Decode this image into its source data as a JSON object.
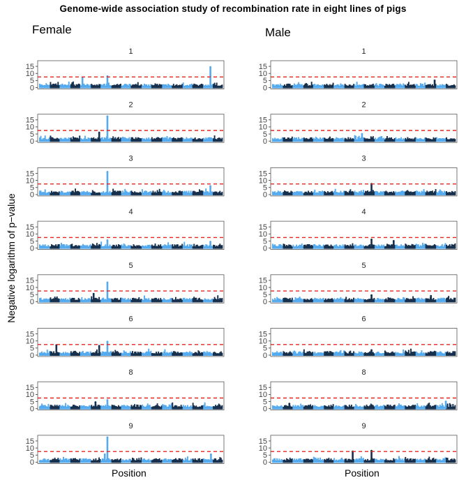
{
  "chart_data": {
    "type": "scatter",
    "title": "Genome-wide association study of recombination rate in eight lines of pigs",
    "ylabel": "Negative logarithm of p−value",
    "xlabel": "Position",
    "ylim": [
      0,
      18
    ],
    "yticks": [
      0,
      5,
      10,
      15
    ],
    "threshold": 7.5,
    "threshold_color": "#e8231e",
    "colors": {
      "dark": "#16304d",
      "light": "#56aaee"
    },
    "n_chromosomes": 18,
    "columns": [
      {
        "name": "Female",
        "panels": [
          {
            "line": "1",
            "peaks": [
              {
                "pos": 0.374,
                "p": 8.0
              },
              {
                "pos": 0.927,
                "p": 14.5
              },
              {
                "pos": 0.24,
                "p": 7.0
              }
            ]
          },
          {
            "line": "2",
            "peaks": [
              {
                "pos": 0.374,
                "p": 17.5
              },
              {
                "pos": 0.33,
                "p": 6.0
              }
            ]
          },
          {
            "line": "3",
            "peaks": [
              {
                "pos": 0.374,
                "p": 16.0
              },
              {
                "pos": 0.927,
                "p": 6.0
              }
            ]
          },
          {
            "line": "4",
            "peaks": [
              {
                "pos": 0.374,
                "p": 5.5
              },
              {
                "pos": 0.927,
                "p": 4.5
              }
            ]
          },
          {
            "line": "5",
            "peaks": [
              {
                "pos": 0.374,
                "p": 13.5
              },
              {
                "pos": 0.3,
                "p": 5.5
              }
            ]
          },
          {
            "line": "6",
            "peaks": [
              {
                "pos": 0.374,
                "p": 9.5
              },
              {
                "pos": 0.1,
                "p": 7.0
              },
              {
                "pos": 0.33,
                "p": 6.5
              }
            ]
          },
          {
            "line": "8",
            "peaks": [
              {
                "pos": 0.374,
                "p": 6.0
              },
              {
                "pos": 0.31,
                "p": 4.5
              }
            ]
          },
          {
            "line": "9",
            "peaks": [
              {
                "pos": 0.374,
                "p": 17.5
              },
              {
                "pos": 0.36,
                "p": 5.5
              },
              {
                "pos": 0.93,
                "p": 5.5
              }
            ]
          }
        ]
      },
      {
        "name": "Male",
        "panels": [
          {
            "line": "1",
            "peaks": [
              {
                "pos": 0.88,
                "p": 5.0
              }
            ]
          },
          {
            "line": "2",
            "peaks": [
              {
                "pos": 0.49,
                "p": 5.0
              }
            ]
          },
          {
            "line": "3",
            "peaks": [
              {
                "pos": 0.541,
                "p": 7.5
              }
            ]
          },
          {
            "line": "4",
            "peaks": [
              {
                "pos": 0.541,
                "p": 6.0
              },
              {
                "pos": 0.66,
                "p": 5.0
              }
            ]
          },
          {
            "line": "5",
            "peaks": [
              {
                "pos": 0.541,
                "p": 4.5
              },
              {
                "pos": 0.86,
                "p": 4.0
              }
            ]
          },
          {
            "line": "6",
            "peaks": [
              {
                "pos": 0.541,
                "p": 3.5
              }
            ]
          },
          {
            "line": "8",
            "peaks": [
              {
                "pos": 0.94,
                "p": 5.0
              },
              {
                "pos": 0.1,
                "p": 3.5
              }
            ]
          },
          {
            "line": "9",
            "peaks": [
              {
                "pos": 0.541,
                "p": 8.0
              },
              {
                "pos": 0.44,
                "p": 7.5
              }
            ]
          }
        ]
      }
    ]
  }
}
